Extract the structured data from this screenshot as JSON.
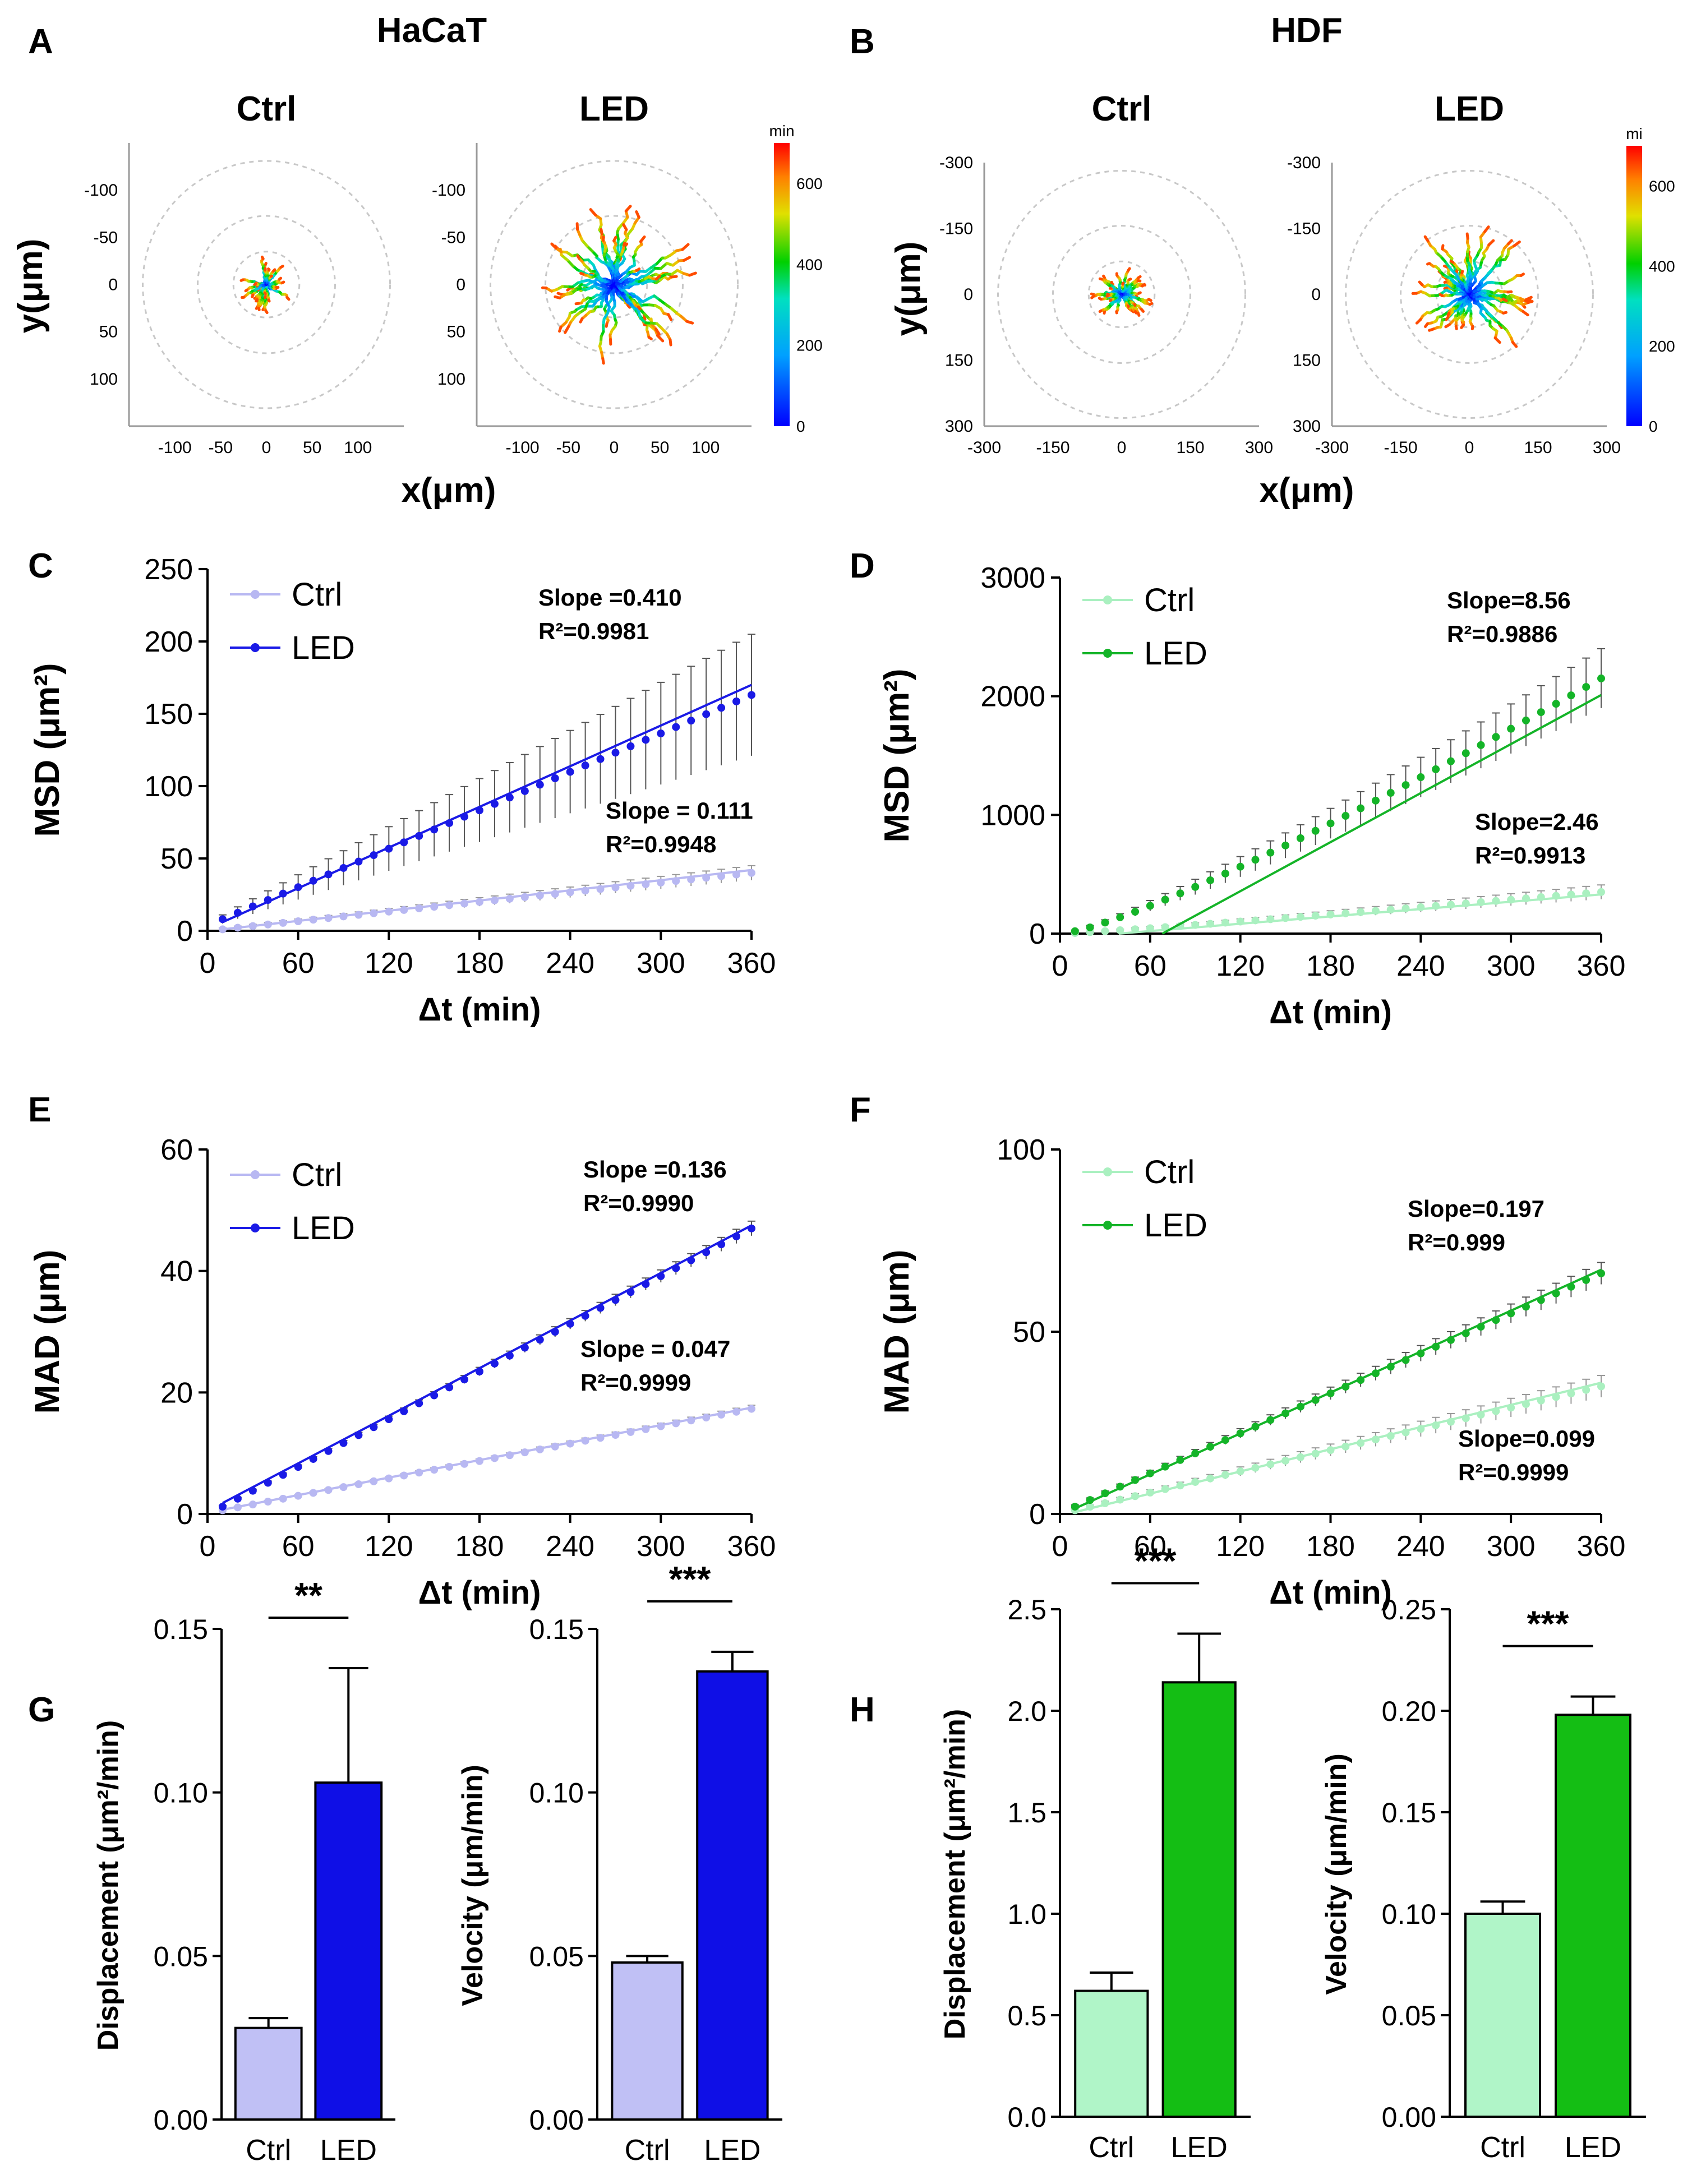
{
  "figure": {
    "panel_letters": [
      "A",
      "B",
      "C",
      "D",
      "E",
      "F",
      "G",
      "H"
    ],
    "group_titles": {
      "A": "HaCaT",
      "B": "HDF"
    }
  },
  "chart_data": [
    {
      "panel": "A",
      "type": "trajectory_plot",
      "subplots": [
        {
          "title": "Ctrl",
          "spread": 30
        },
        {
          "title": "LED",
          "spread": 85
        }
      ],
      "xlabel": "x(μm)",
      "ylabel": "y(μm)",
      "range": [
        -150,
        150
      ],
      "xticks": [
        -100,
        -50,
        0,
        50,
        100
      ],
      "yticks": [
        -100,
        -50,
        0,
        50,
        100
      ],
      "ytick_labels": [
        "-100",
        "-50",
        "0",
        "50",
        "100"
      ],
      "colorbar": {
        "label": "min",
        "ticks": [
          0,
          200,
          400,
          600
        ],
        "max": 700
      }
    },
    {
      "panel": "B",
      "type": "trajectory_plot",
      "subplots": [
        {
          "title": "Ctrl",
          "spread": 70
        },
        {
          "title": "LED",
          "spread": 160
        }
      ],
      "xlabel": "x(μm)",
      "ylabel": "y(μm)",
      "range": [
        -300,
        300
      ],
      "xticks": [
        -300,
        -150,
        0,
        150,
        300
      ],
      "yticks": [
        -300,
        -150,
        0,
        150,
        300
      ],
      "ytick_labels": [
        "-300",
        "-150",
        "0",
        "150",
        "300"
      ],
      "colorbar": {
        "label": "mi",
        "ticks": [
          0,
          200,
          400,
          600
        ],
        "max": 700
      }
    },
    {
      "panel": "C",
      "type": "scatter",
      "xlabel": "Δt (min)",
      "ylabel": "MSD (μm²)",
      "xlim": [
        0,
        360
      ],
      "ylim": [
        0,
        250
      ],
      "xticks": [
        0,
        60,
        120,
        180,
        240,
        300,
        360
      ],
      "yticks": [
        0,
        50,
        100,
        150,
        200,
        250
      ],
      "legend": [
        "Ctrl",
        "LED"
      ],
      "series": [
        {
          "name": "LED",
          "color": "#1a1ae6",
          "y0": 8,
          "y1": 163,
          "exp": 1.0,
          "fit": [
            6,
            170
          ],
          "err0": 3,
          "err1": 42,
          "annotation": [
            "Slope =0.410",
            "R²=0.9981"
          ]
        },
        {
          "name": "Ctrl",
          "color": "#b8b8f2",
          "y0": 1,
          "y1": 40,
          "exp": 1.0,
          "fit": [
            1,
            42
          ],
          "err0": 1,
          "err1": 5,
          "annotation": [
            "Slope = 0.111",
            "R²=0.9948"
          ]
        }
      ]
    },
    {
      "panel": "D",
      "type": "scatter",
      "xlabel": "Δt (min)",
      "ylabel": "MSD (μm²)",
      "xlim": [
        0,
        360
      ],
      "ylim": [
        0,
        3000
      ],
      "xticks": [
        0,
        60,
        120,
        180,
        240,
        300,
        360
      ],
      "yticks": [
        0,
        1000,
        2000,
        3000
      ],
      "legend": [
        "Ctrl",
        "LED"
      ],
      "series": [
        {
          "name": "LED",
          "color": "#14b428",
          "y0": 20,
          "y1": 2150,
          "exp": 1.18,
          "fit": [
            -400,
            2010
          ],
          "err0": 10,
          "err1": 250,
          "annotation": [
            "Slope=8.56",
            "R²=0.9886"
          ]
        },
        {
          "name": "Ctrl",
          "color": "#aaf0c0",
          "y0": 5,
          "y1": 350,
          "exp": 1.1,
          "fit": [
            -30,
            330
          ],
          "err0": 5,
          "err1": 60,
          "annotation": [
            "Slope=2.46",
            "R²=0.9913"
          ]
        }
      ]
    },
    {
      "panel": "E",
      "type": "scatter",
      "xlabel": "Δt (min)",
      "ylabel": "MAD (μm)",
      "xlim": [
        0,
        360
      ],
      "ylim": [
        0,
        60
      ],
      "xticks": [
        0,
        60,
        120,
        180,
        240,
        300,
        360
      ],
      "yticks": [
        0,
        20,
        40,
        60
      ],
      "legend": [
        "Ctrl",
        "LED"
      ],
      "series": [
        {
          "name": "LED",
          "color": "#1a1ae6",
          "y0": 1.2,
          "y1": 47,
          "exp": 1.0,
          "fit": [
            1.8,
            47.5
          ],
          "err0": 0.2,
          "err1": 1.2,
          "annotation": [
            "Slope =0.136",
            "R²=0.9990"
          ]
        },
        {
          "name": "Ctrl",
          "color": "#b8b8f2",
          "y0": 0.6,
          "y1": 17.3,
          "exp": 1.0,
          "fit": [
            0.7,
            17.5
          ],
          "err0": 0.1,
          "err1": 0.6,
          "annotation": [
            "Slope = 0.047",
            "R²=0.9999"
          ]
        }
      ]
    },
    {
      "panel": "F",
      "type": "scatter",
      "xlabel": "Δt (min)",
      "ylabel": "MAD (μm)",
      "xlim": [
        0,
        360
      ],
      "ylim": [
        0,
        100
      ],
      "xticks": [
        0,
        60,
        120,
        180,
        240,
        300,
        360
      ],
      "yticks": [
        0,
        50,
        100
      ],
      "legend": [
        "Ctrl",
        "LED"
      ],
      "series": [
        {
          "name": "LED",
          "color": "#14b428",
          "y0": 2,
          "y1": 66,
          "exp": 1.0,
          "fit": [
            1.5,
            67
          ],
          "err0": 0.5,
          "err1": 3,
          "annotation": [
            "Slope=0.197",
            "R²=0.999"
          ]
        },
        {
          "name": "Ctrl",
          "color": "#aaf0c0",
          "y0": 1,
          "y1": 35,
          "exp": 1.0,
          "fit": [
            0.5,
            36
          ],
          "err0": 0.4,
          "err1": 3,
          "annotation": [
            "Slope=0.099",
            "R²=0.9999"
          ]
        }
      ]
    },
    {
      "panel": "G",
      "type": "bar",
      "subplots": [
        {
          "ylabel": "Displacement (μm²/min)",
          "ylim": [
            0,
            0.15
          ],
          "yticks": [
            0,
            0.05,
            0.1,
            0.15
          ],
          "ytick_labels": [
            "0.00",
            "0.05",
            "0.10",
            "0.15"
          ],
          "categories": [
            "Ctrl",
            "LED"
          ],
          "values": [
            0.028,
            0.103
          ],
          "errors": [
            0.003,
            0.035
          ],
          "significance": "**"
        },
        {
          "ylabel": "Velocity (μm/min)",
          "ylim": [
            0,
            0.15
          ],
          "yticks": [
            0,
            0.05,
            0.1,
            0.15
          ],
          "ytick_labels": [
            "0.00",
            "0.05",
            "0.10",
            "0.15"
          ],
          "categories": [
            "Ctrl",
            "LED"
          ],
          "values": [
            0.048,
            0.137
          ],
          "errors": [
            0.002,
            0.006
          ],
          "significance": "***"
        }
      ],
      "colors": [
        "#c0c0f5",
        "#0f0fe6"
      ]
    },
    {
      "panel": "H",
      "type": "bar",
      "subplots": [
        {
          "ylabel": "Displacement (μm²/min)",
          "ylim": [
            0,
            2.5
          ],
          "yticks": [
            0,
            0.5,
            1.0,
            1.5,
            2.0,
            2.5
          ],
          "ytick_labels": [
            "0.0",
            "0.5",
            "1.0",
            "1.5",
            "2.0",
            "2.5"
          ],
          "categories": [
            "Ctrl",
            "LED"
          ],
          "values": [
            0.62,
            2.14
          ],
          "errors": [
            0.09,
            0.24
          ],
          "significance": "***"
        },
        {
          "ylabel": "Velocity (μm/min)",
          "ylim": [
            0,
            0.25
          ],
          "yticks": [
            0,
            0.05,
            0.1,
            0.15,
            0.2,
            0.25
          ],
          "ytick_labels": [
            "0.00",
            "0.05",
            "0.10",
            "0.15",
            "0.20",
            "0.25"
          ],
          "categories": [
            "Ctrl",
            "LED"
          ],
          "values": [
            0.1,
            0.198
          ],
          "errors": [
            0.006,
            0.009
          ],
          "significance": "***"
        }
      ],
      "colors": [
        "#b0f5c8",
        "#14be14"
      ]
    }
  ]
}
